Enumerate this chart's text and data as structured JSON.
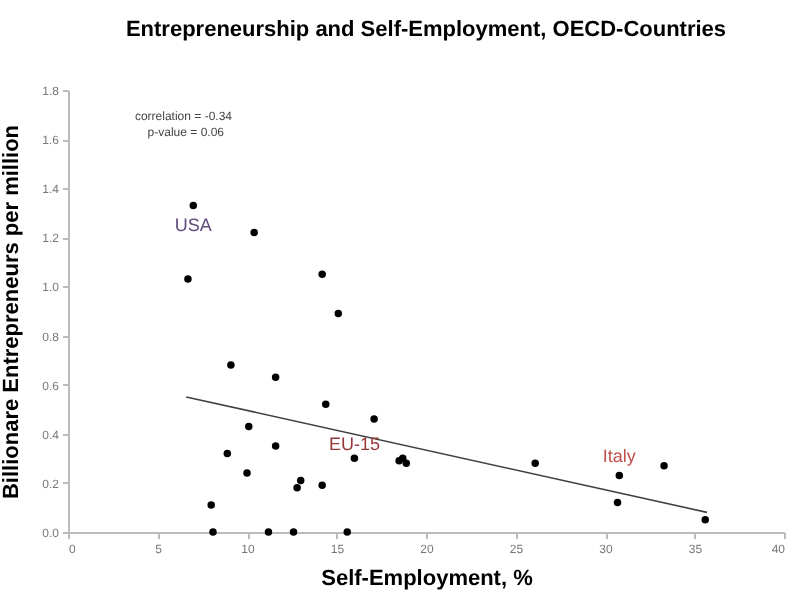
{
  "chart_data": {
    "type": "scatter",
    "title": "Entrepreneurship and Self-Employment, OECD-Countries",
    "xlabel": "Self-Employment, %",
    "ylabel": "Billionare Entrepreneurs per million",
    "xlim": [
      0,
      40
    ],
    "xticks": [
      0,
      5,
      10,
      15,
      20,
      25,
      30,
      35,
      40
    ],
    "ylim": [
      0,
      1.8
    ],
    "yticks": [
      {
        "value": 0,
        "label": "0.0"
      },
      {
        "value": 0.2,
        "label": "0.2"
      },
      {
        "value": 0.4,
        "label": "0.4"
      },
      {
        "value": 0.6,
        "label": "0.6"
      },
      {
        "value": 0.8,
        "label": "0.8"
      },
      {
        "value": 1,
        "label": "1.0"
      },
      {
        "value": 1.2,
        "label": "1.2"
      },
      {
        "value": 1.4,
        "label": "1.4"
      },
      {
        "value": 1.6,
        "label": "1.6"
      },
      {
        "value": 1.8,
        "label": "1.8"
      }
    ],
    "grid": false,
    "series": [
      {
        "color": "#000000",
        "marker": "circle",
        "x": [
          7.0,
          6.7,
          10.4,
          14.2,
          15.1,
          9.1,
          11.6,
          14.4,
          17.1,
          10.1,
          11.6,
          8.9,
          16.0,
          10.0,
          13.0,
          12.8,
          14.2,
          8.0,
          8.1,
          11.2,
          12.6,
          15.6,
          18.5,
          18.7,
          18.9,
          26.1,
          30.8,
          33.3,
          30.7,
          35.6
        ],
        "values": [
          1.33,
          1.03,
          1.22,
          1.05,
          0.89,
          0.68,
          0.63,
          0.52,
          0.46,
          0.43,
          0.35,
          0.32,
          0.3,
          0.24,
          0.21,
          0.18,
          0.19,
          0.11,
          0,
          0,
          0,
          0,
          0.29,
          0.3,
          0.28,
          0.28,
          0.23,
          0.27,
          0.12,
          0.05
        ]
      },
      {
        "type": "line",
        "color": "#404040",
        "x": [
          6.6,
          35.7
        ],
        "values": [
          0.55,
          0.08
        ]
      }
    ],
    "annotations": [
      "correlation = -0.34",
      "p-value = 0.06",
      {
        "text": "USA",
        "x": 7.0,
        "y": 1.33
      },
      {
        "text": "EU-15",
        "x": 16.0,
        "y": 0.3
      },
      {
        "text": "Italy",
        "x": 30.8,
        "y": 0.23
      }
    ]
  }
}
